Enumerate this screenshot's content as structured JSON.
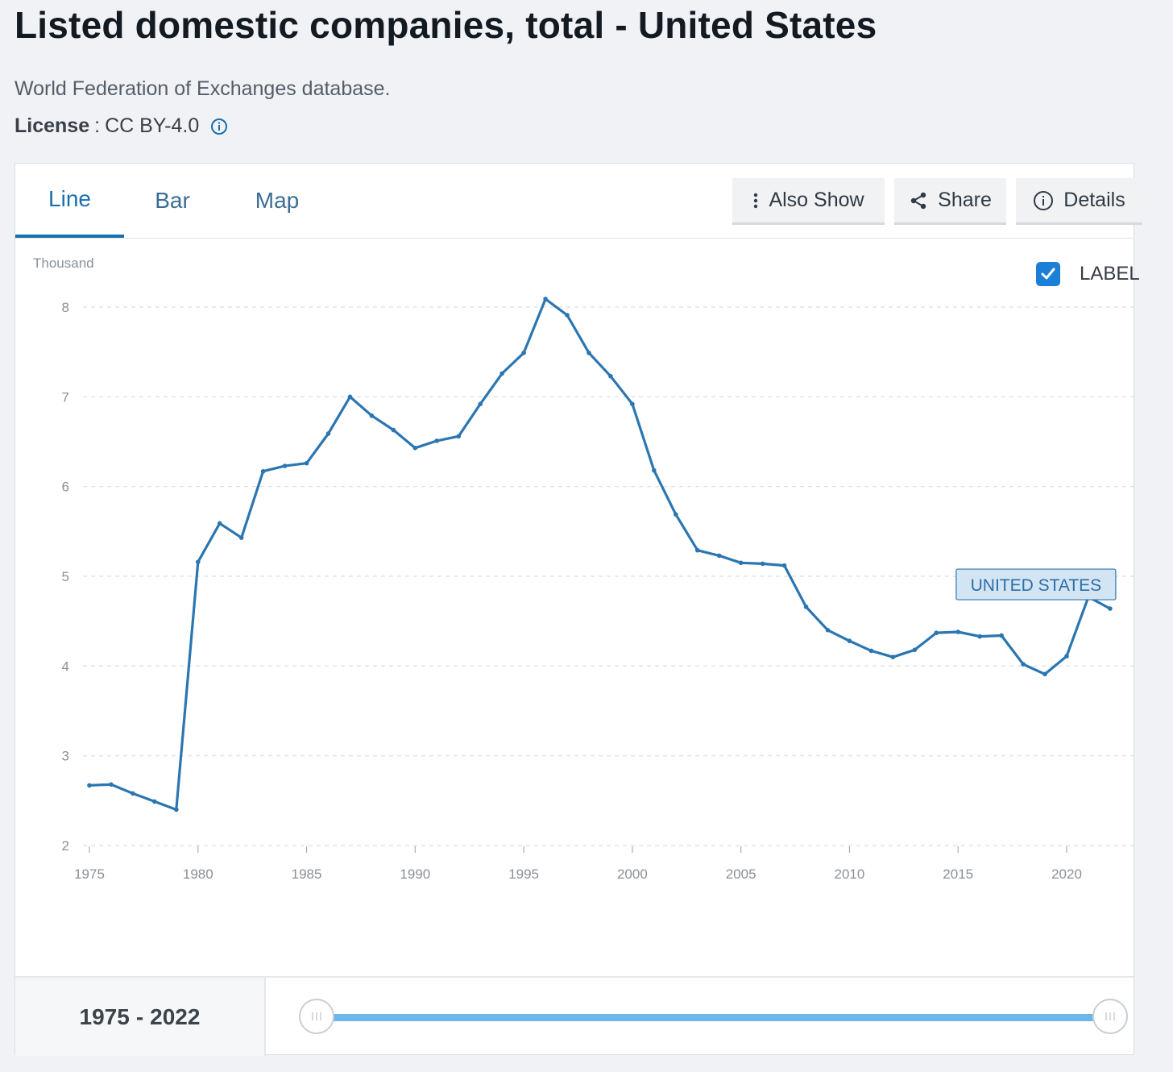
{
  "header": {
    "title": "Listed domestic companies, total - United States",
    "source": "World Federation of Exchanges database.",
    "license_label": "License",
    "license_value": "CC BY-4.0"
  },
  "tabs": [
    {
      "label": "Line",
      "active": true
    },
    {
      "label": "Bar",
      "active": false
    },
    {
      "label": "Map",
      "active": false
    }
  ],
  "toolbar": {
    "also_show": "Also Show",
    "share": "Share",
    "details": "Details"
  },
  "label_toggle": {
    "text": "LABEL",
    "checked": true
  },
  "range": {
    "start": "1975",
    "separator": "-",
    "end": "2022"
  },
  "colors": {
    "accent": "#1a6fb0",
    "series": "#2b76b0",
    "slider": "#6ab7e8"
  },
  "chart_data": {
    "type": "line",
    "ylabel": "Thousand",
    "ylim": [
      2,
      8
    ],
    "yticks": [
      "2",
      "3",
      "4",
      "5",
      "6",
      "7",
      "8"
    ],
    "xticks": [
      "1975",
      "1980",
      "1985",
      "1990",
      "1995",
      "2000",
      "2005",
      "2010",
      "2015",
      "2020"
    ],
    "xlim": [
      1975,
      2022
    ],
    "grid": true,
    "series": [
      {
        "name": "UNITED STATES",
        "x": [
          1975,
          1976,
          1977,
          1978,
          1979,
          1980,
          1981,
          1982,
          1983,
          1984,
          1985,
          1986,
          1987,
          1988,
          1989,
          1990,
          1991,
          1992,
          1993,
          1994,
          1995,
          1996,
          1997,
          1998,
          1999,
          2000,
          2001,
          2002,
          2003,
          2004,
          2005,
          2006,
          2007,
          2008,
          2009,
          2010,
          2011,
          2012,
          2013,
          2014,
          2015,
          2016,
          2017,
          2018,
          2019,
          2020,
          2021,
          2022
        ],
        "values": [
          2.67,
          2.68,
          2.58,
          2.49,
          2.4,
          5.16,
          5.59,
          5.43,
          6.17,
          6.23,
          6.26,
          6.59,
          7.0,
          6.79,
          6.63,
          6.43,
          6.51,
          6.56,
          6.92,
          7.26,
          7.49,
          8.09,
          7.91,
          7.49,
          7.23,
          6.92,
          6.18,
          5.69,
          5.29,
          5.23,
          5.15,
          5.14,
          5.12,
          4.66,
          4.4,
          4.28,
          4.17,
          4.1,
          4.18,
          4.37,
          4.38,
          4.33,
          4.34,
          4.02,
          3.91,
          4.11,
          4.77,
          4.64
        ]
      }
    ]
  }
}
